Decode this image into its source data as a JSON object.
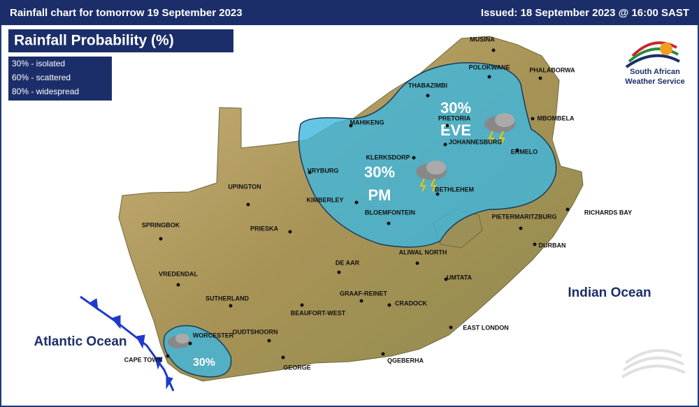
{
  "header": {
    "title": "Rainfall chart for tomorrow 19 September 2023",
    "issued": "Issued: 18 September 2023 @ 16:00 SAST"
  },
  "legend": {
    "title": "Rainfall Probability (%)",
    "items": [
      "30% - isolated",
      "60% - scattered",
      "80% - widespread"
    ]
  },
  "logo": {
    "lines": [
      "South African",
      "Weather Service"
    ]
  },
  "oceans": [
    "Atlantic Ocean",
    "Indian Ocean"
  ],
  "rain_areas": [
    {
      "probability": "30%",
      "period": "EVE"
    },
    {
      "probability": "30%",
      "period": "PM"
    },
    {
      "probability": "30%"
    }
  ],
  "cities": [
    "MUSINA",
    "POLOKWANE",
    "PHALABORWA",
    "THABAZIMBI",
    "MBOMBELA",
    "PRETORIA",
    "MAHIKENG",
    "JOHANNESBURG",
    "ERMELO",
    "KLERKSDORP",
    "VRYBURG",
    "UPINGTON",
    "BETHLEHEM",
    "KIMBERLEY",
    "BLOEMFONTEIN",
    "RICHARDS BAY",
    "PIETERMARITZBURG",
    "SPRINGBOK",
    "PRIESKA",
    "DURBAN",
    "ALIWAL NORTH",
    "DE AAR",
    "VREDENDAL",
    "UMTATA",
    "SUTHERLAND",
    "GRAAF-REINET",
    "CRADOCK",
    "BEAUFORT-WEST",
    "EAST LONDON",
    "WORCESTER",
    "OUDTSHOORN",
    "CAPE TOWN",
    "GEORGE",
    "QGEBERHA"
  ]
}
